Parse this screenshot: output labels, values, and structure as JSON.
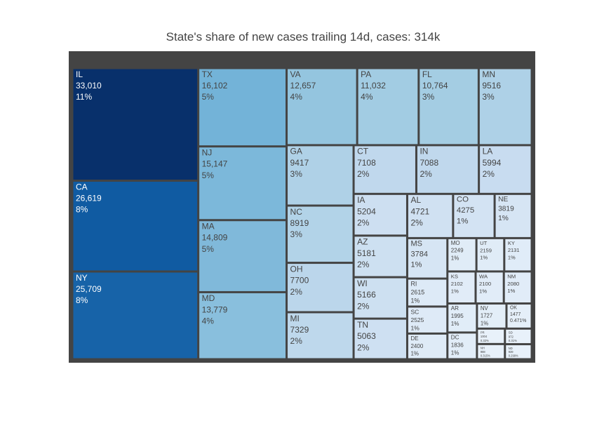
{
  "chart_data": {
    "type": "treemap",
    "title": "State's share of new cases trailing 14d, cases: 314k",
    "labels": [
      "IL",
      "CA",
      "NY",
      "TX",
      "NJ",
      "MA",
      "MD",
      "VA",
      "PA",
      "FL",
      "MN",
      "GA",
      "NC",
      "OH",
      "MI",
      "CT",
      "IN",
      "LA",
      "IA",
      "AZ",
      "WI",
      "TN",
      "AL",
      "CO",
      "NE",
      "MS",
      "RI",
      "SC",
      "DE",
      "MO",
      "UT",
      "KY",
      "KS",
      "WA",
      "NM",
      "AR",
      "DC",
      "NV",
      "OK",
      "PR",
      "NH",
      "SD",
      "ND"
    ],
    "values": [
      33010,
      26619,
      25709,
      16102,
      15147,
      14809,
      13779,
      12657,
      11032,
      10764,
      9516,
      9417,
      8919,
      7700,
      7329,
      7108,
      7088,
      5994,
      5204,
      5181,
      5166,
      5063,
      4721,
      4275,
      3819,
      3784,
      2615,
      2525,
      2400,
      2249,
      2159,
      2131,
      2102,
      2100,
      2080,
      1995,
      1836,
      1727,
      1477,
      1004,
      988,
      972,
      939
    ],
    "value_labels": [
      "33,010",
      "26,619",
      "25,709",
      "16,102",
      "15,147",
      "14,809",
      "13,779",
      "12,657",
      "11,032",
      "10,764",
      "9516",
      "9417",
      "8919",
      "7700",
      "7329",
      "7108",
      "7088",
      "5994",
      "5204",
      "5181",
      "5166",
      "5063",
      "4721",
      "4275",
      "3819",
      "3784",
      "2615",
      "2525",
      "2400",
      "2249",
      "2159",
      "2131",
      "2102",
      "2100",
      "2080",
      "1995",
      "1836",
      "1727",
      "1477",
      "1004",
      "988",
      "972",
      "939"
    ],
    "share_labels": [
      "11%",
      "8%",
      "8%",
      "5%",
      "5%",
      "5%",
      "4%",
      "4%",
      "4%",
      "3%",
      "3%",
      "3%",
      "3%",
      "2%",
      "2%",
      "2%",
      "2%",
      "2%",
      "2%",
      "2%",
      "2%",
      "2%",
      "2%",
      "1%",
      "1%",
      "1%",
      "1%",
      "1%",
      "1%",
      "1%",
      "1%",
      "1%",
      "1%",
      "1%",
      "1%",
      "1%",
      "1%",
      "1%",
      "0.471%",
      "0.32%",
      "0.315%",
      "0.31%",
      "0.299%"
    ],
    "colorscale": [
      "#e8f1fa",
      "#c6dbef",
      "#9ecae1",
      "#6baed6",
      "#3182bd",
      "#08519c",
      "#08306b"
    ]
  }
}
